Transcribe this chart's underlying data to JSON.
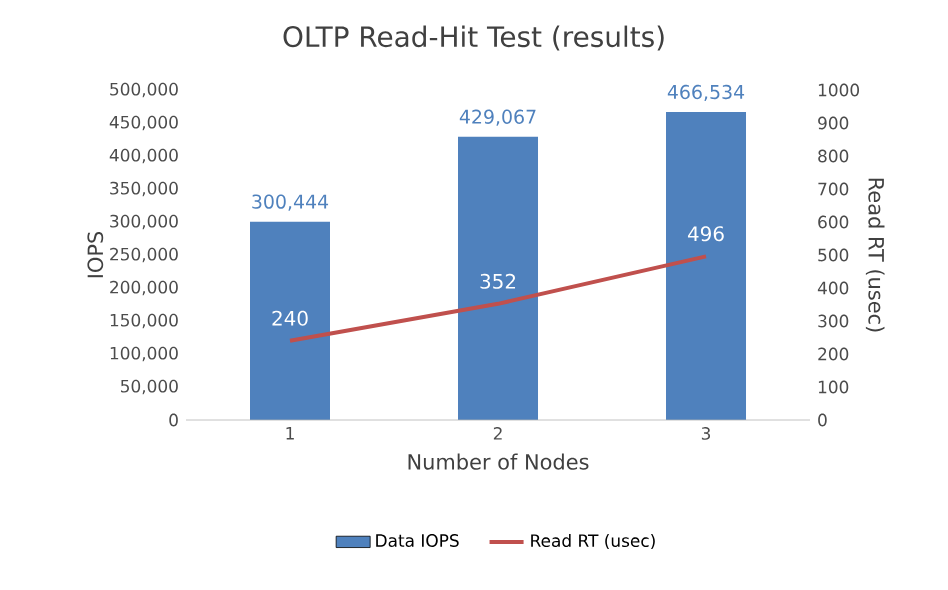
{
  "chart_data": {
    "type": "bar",
    "title": "OLTP Read-Hit Test (results)",
    "xlabel": "Number of Nodes",
    "ylabel": "IOPS",
    "y2label": "Read RT (usec)",
    "categories": [
      "1",
      "2",
      "3"
    ],
    "series": [
      {
        "name": "Data IOPS",
        "color": "#4f81bd",
        "values": [
          300444,
          429067,
          466534
        ],
        "value_labels": [
          "300,444",
          "429,067",
          "466,534"
        ]
      },
      {
        "name": "Read RT (usec)",
        "type": "line",
        "axis": "y2",
        "color": "#c0504d",
        "values": [
          240,
          352,
          496
        ],
        "value_labels": [
          "240",
          "352",
          "496"
        ]
      }
    ],
    "ylim": [
      0,
      500000
    ],
    "yticks": [
      0,
      {
        "value": 50000,
        "label": "50,000"
      },
      {
        "value": 100000,
        "label": "100,000"
      },
      {
        "value": 150000,
        "label": "150,000"
      },
      {
        "value": 200000,
        "label": "200,000"
      },
      {
        "value": 250000,
        "label": "250,000"
      },
      {
        "value": 300000,
        "label": "300,000"
      },
      {
        "value": 350000,
        "label": "350,000"
      },
      {
        "value": 400000,
        "label": "400,000"
      },
      {
        "value": 450000,
        "label": "450,000"
      },
      {
        "value": 500000,
        "label": "500,000"
      }
    ],
    "y2lim": [
      0,
      1000
    ],
    "y2ticks": [
      0,
      100,
      200,
      300,
      400,
      500,
      600,
      700,
      800,
      900,
      1000
    ],
    "legend": "bottom",
    "marker": "none",
    "line_style": "solid",
    "grid": false
  }
}
